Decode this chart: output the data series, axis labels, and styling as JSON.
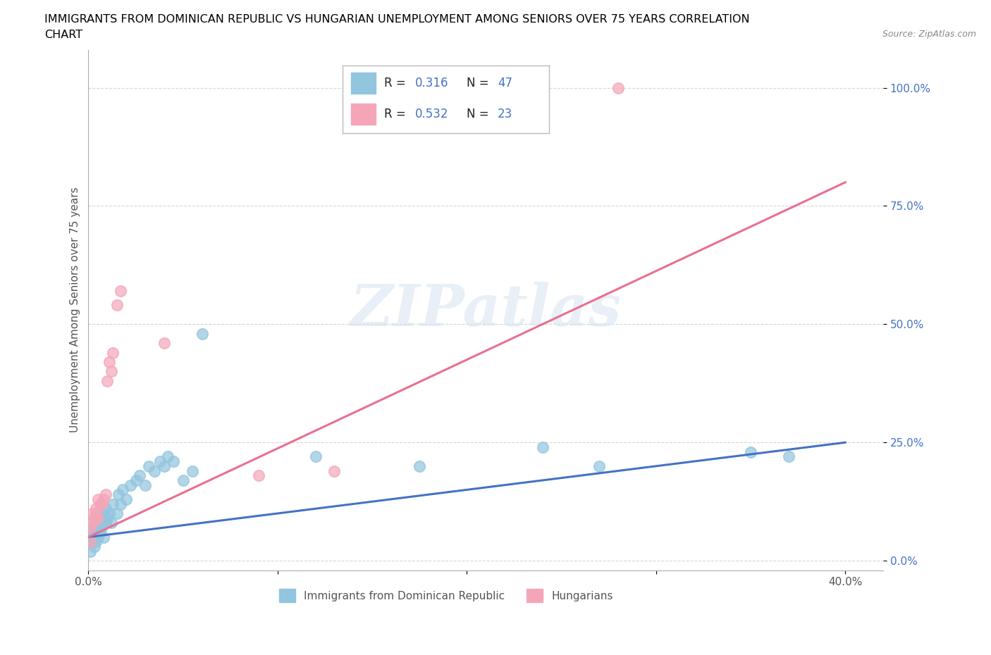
{
  "title_line1": "IMMIGRANTS FROM DOMINICAN REPUBLIC VS HUNGARIAN UNEMPLOYMENT AMONG SENIORS OVER 75 YEARS CORRELATION",
  "title_line2": "CHART",
  "source": "Source: ZipAtlas.com",
  "ylabel": "Unemployment Among Seniors over 75 years",
  "xlim": [
    0.0,
    0.42
  ],
  "ylim": [
    -0.02,
    1.08
  ],
  "y_ticks": [
    0.0,
    0.25,
    0.5,
    0.75,
    1.0
  ],
  "y_tick_labels": [
    "0.0%",
    "25.0%",
    "50.0%",
    "75.0%",
    "100.0%"
  ],
  "x_ticks": [
    0.0,
    0.1,
    0.2,
    0.3,
    0.4
  ],
  "x_tick_labels": [
    "0.0%",
    "",
    "",
    "",
    "40.0%"
  ],
  "blue_color": "#92C5DE",
  "pink_color": "#F4A6B8",
  "blue_line_color": "#4472C4",
  "pink_line_color": "#E87090",
  "tick_color": "#4472C4",
  "R_blue": 0.316,
  "N_blue": 47,
  "R_pink": 0.532,
  "N_pink": 23,
  "legend1_label": "Immigrants from Dominican Republic",
  "legend2_label": "Hungarians",
  "watermark": "ZIPatlas",
  "blue_scatter_x": [
    0.001,
    0.001,
    0.002,
    0.002,
    0.003,
    0.003,
    0.004,
    0.004,
    0.005,
    0.005,
    0.005,
    0.006,
    0.006,
    0.007,
    0.007,
    0.008,
    0.008,
    0.009,
    0.009,
    0.01,
    0.011,
    0.012,
    0.013,
    0.015,
    0.016,
    0.017,
    0.018,
    0.02,
    0.022,
    0.025,
    0.027,
    0.03,
    0.032,
    0.035,
    0.038,
    0.04,
    0.042,
    0.045,
    0.05,
    0.055,
    0.06,
    0.12,
    0.175,
    0.24,
    0.27,
    0.35,
    0.37
  ],
  "blue_scatter_y": [
    0.02,
    0.04,
    0.05,
    0.07,
    0.03,
    0.06,
    0.04,
    0.08,
    0.05,
    0.07,
    0.09,
    0.06,
    0.08,
    0.07,
    0.09,
    0.05,
    0.1,
    0.08,
    0.11,
    0.09,
    0.1,
    0.08,
    0.12,
    0.1,
    0.14,
    0.12,
    0.15,
    0.13,
    0.16,
    0.17,
    0.18,
    0.16,
    0.2,
    0.19,
    0.21,
    0.2,
    0.22,
    0.21,
    0.17,
    0.19,
    0.48,
    0.22,
    0.2,
    0.24,
    0.2,
    0.23,
    0.22
  ],
  "pink_scatter_x": [
    0.001,
    0.001,
    0.002,
    0.002,
    0.003,
    0.004,
    0.004,
    0.005,
    0.005,
    0.006,
    0.007,
    0.008,
    0.009,
    0.01,
    0.011,
    0.012,
    0.013,
    0.015,
    0.017,
    0.04,
    0.09,
    0.13,
    0.28
  ],
  "pink_scatter_y": [
    0.04,
    0.07,
    0.08,
    0.1,
    0.09,
    0.1,
    0.11,
    0.09,
    0.13,
    0.12,
    0.12,
    0.13,
    0.14,
    0.38,
    0.42,
    0.4,
    0.44,
    0.54,
    0.57,
    0.46,
    0.18,
    0.19,
    1.0
  ],
  "blue_trend_x": [
    0.0,
    0.4
  ],
  "blue_trend_y": [
    0.05,
    0.25
  ],
  "pink_trend_x": [
    0.0,
    0.4
  ],
  "pink_trend_y": [
    0.05,
    0.8
  ]
}
